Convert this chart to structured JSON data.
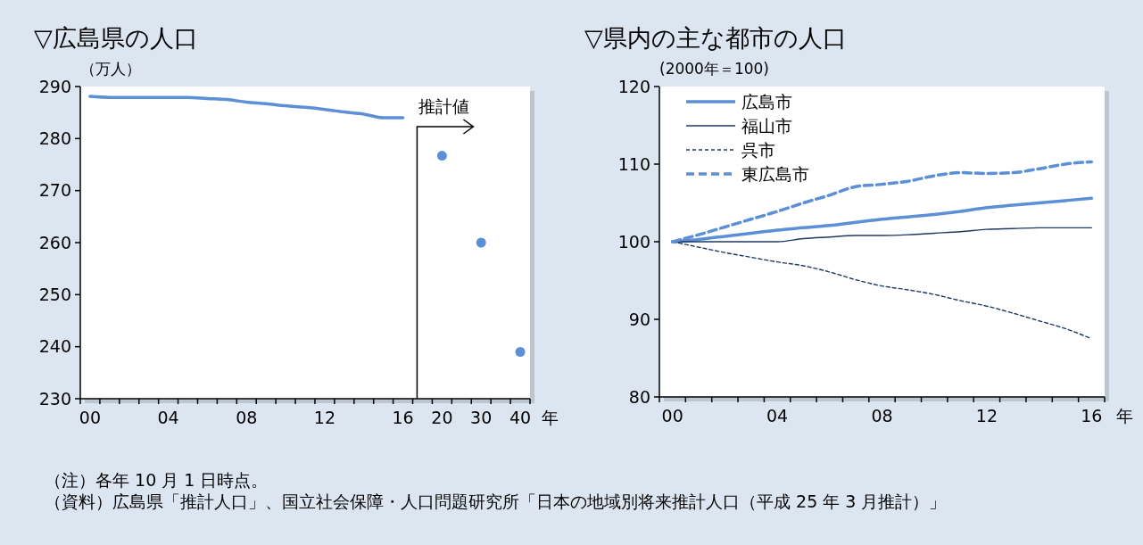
{
  "chart_data": [
    {
      "type": "line",
      "title": "▽広島県の人口",
      "ylabel": "（万人）",
      "xlabel": "年",
      "categories": [
        "00",
        null,
        null,
        null,
        "04",
        null,
        null,
        null,
        "08",
        null,
        null,
        null,
        "12",
        null,
        null,
        null,
        "16",
        null,
        "20",
        null,
        "30",
        null,
        "40"
      ],
      "series": [
        {
          "color": "#5b8fd6",
          "line_style": "solid",
          "values": [
            288.1,
            287.9,
            287.9,
            287.9,
            287.9,
            287.9,
            287.7,
            287.5,
            287.0,
            286.7,
            286.3,
            286.0,
            285.6,
            285.1,
            284.7,
            284.0,
            284.0,
            null,
            null,
            null,
            null,
            null,
            null
          ]
        },
        {
          "type": "scatter",
          "color": "#5b8fd6",
          "marker": "circle",
          "values": [
            null,
            null,
            null,
            null,
            null,
            null,
            null,
            null,
            null,
            null,
            null,
            null,
            null,
            null,
            null,
            null,
            null,
            null,
            276.7,
            null,
            260,
            null,
            239
          ]
        }
      ],
      "ylim": [
        230,
        290
      ],
      "yticks": [
        230,
        240,
        250,
        260,
        270,
        280,
        290
      ],
      "annotations": [
        "推計値",
        "（注）各年 10 月 1 日時点。",
        "（資料）広島県「推計人口」、国立社会保障・人口問題研究所「日本の地域別将来推計人口（平成 25 年 3 月推計）」"
      ]
    },
    {
      "type": "line",
      "title": "▽県内の主な都市の人口",
      "ylabel": "(2000年＝100)",
      "xlabel": "年",
      "legend": "top left",
      "categories": [
        "00",
        null,
        null,
        null,
        "04",
        null,
        null,
        null,
        "08",
        null,
        null,
        null,
        "12",
        null,
        null,
        null,
        "16"
      ],
      "series": [
        {
          "name": "広島市",
          "color": "#5b8fd6",
          "line_style": "solid",
          "values": [
            100,
            100.3,
            100.7,
            101.1,
            101.5,
            101.8,
            102.1,
            102.5,
            102.9,
            103.2,
            103.5,
            103.9,
            104.4,
            104.7,
            105.0,
            105.3,
            105.6
          ]
        },
        {
          "name": "福山市",
          "color": "#1f3864",
          "line_style": "solid",
          "values": [
            100,
            100,
            100,
            100,
            100,
            100.4,
            100.6,
            100.8,
            100.8,
            100.9,
            101.1,
            101.3,
            101.6,
            101.7,
            101.8,
            101.8,
            101.8
          ]
        },
        {
          "name": "呉市",
          "color": "#1f3864",
          "line_style": "dotted",
          "values": [
            100,
            99.3,
            98.6,
            98.0,
            97.4,
            96.9,
            96.1,
            95.1,
            94.3,
            93.8,
            93.2,
            92.4,
            91.7,
            90.8,
            89.8,
            88.8,
            87.5
          ]
        },
        {
          "name": "東広島市",
          "color": "#5b8fd6",
          "line_style": "dashed",
          "values": [
            100,
            100.9,
            101.9,
            102.9,
            103.9,
            105.0,
            106.0,
            107.1,
            107.4,
            107.8,
            108.5,
            108.9,
            108.8,
            108.9,
            109.4,
            110.0,
            110.3
          ]
        }
      ],
      "ylim": [
        80,
        120
      ],
      "yticks": [
        80,
        90,
        100,
        110,
        120
      ]
    }
  ]
}
